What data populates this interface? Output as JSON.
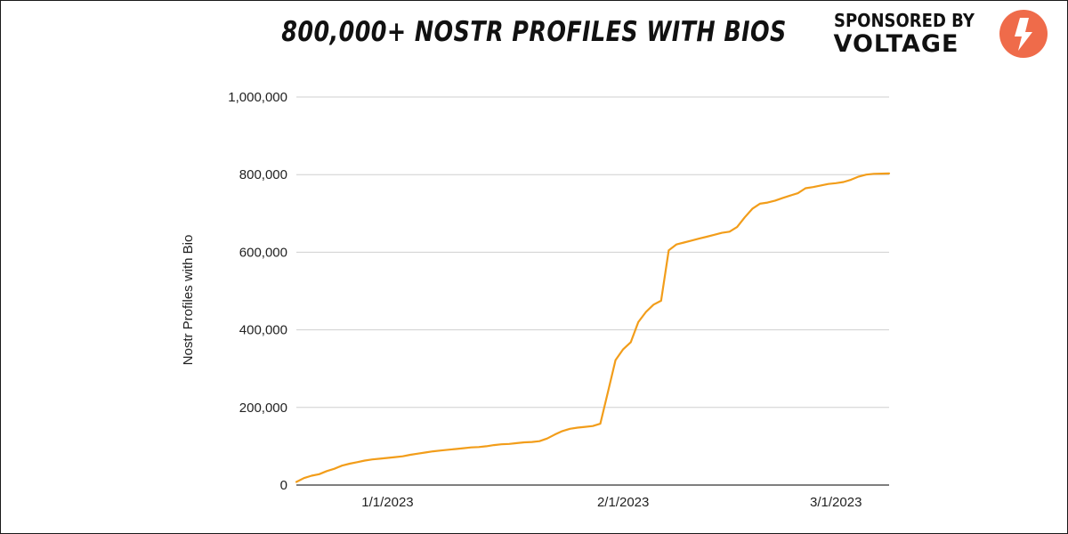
{
  "header": {
    "title": "800,000+ NOSTR PROFILES WITH BIOS",
    "sponsor_line1": "SPONSORED BY",
    "sponsor_line2": "VOLTAGE",
    "sponsor_logo_icon": "lightning-bolt-icon",
    "sponsor_logo_color": "#ef6b4a"
  },
  "chart_data": {
    "type": "line",
    "title": "800,000+ NOSTR PROFILES WITH BIOS",
    "xlabel": "",
    "ylabel": "Nostr Profiles with Bio",
    "ylim": [
      0,
      1000000
    ],
    "yticks": [
      0,
      200000,
      400000,
      600000,
      800000,
      1000000
    ],
    "ytick_labels": [
      "0",
      "200,000",
      "400,000",
      "600,000",
      "800,000",
      "1,000,000"
    ],
    "xticks": [
      "2023-01-01",
      "2023-02-01",
      "2023-03-01"
    ],
    "xtick_labels": [
      "1/1/2023",
      "2/1/2023",
      "3/1/2023"
    ],
    "xlim": [
      "2022-12-20",
      "2023-03-08"
    ],
    "grid": true,
    "line_color": "#f29d1a",
    "series": [
      {
        "x": [
          "2022-12-20",
          "2022-12-21",
          "2022-12-22",
          "2022-12-23",
          "2022-12-24",
          "2022-12-25",
          "2022-12-26",
          "2022-12-27",
          "2022-12-28",
          "2022-12-29",
          "2022-12-30",
          "2022-12-31",
          "2023-01-01",
          "2023-01-02",
          "2023-01-03",
          "2023-01-04",
          "2023-01-05",
          "2023-01-06",
          "2023-01-07",
          "2023-01-08",
          "2023-01-09",
          "2023-01-10",
          "2023-01-11",
          "2023-01-12",
          "2023-01-13",
          "2023-01-14",
          "2023-01-15",
          "2023-01-16",
          "2023-01-17",
          "2023-01-18",
          "2023-01-19",
          "2023-01-20",
          "2023-01-21",
          "2023-01-22",
          "2023-01-23",
          "2023-01-24",
          "2023-01-25",
          "2023-01-26",
          "2023-01-27",
          "2023-01-28",
          "2023-01-29",
          "2023-01-30",
          "2023-01-31",
          "2023-02-01",
          "2023-02-02",
          "2023-02-03",
          "2023-02-04",
          "2023-02-05",
          "2023-02-06",
          "2023-02-07",
          "2023-02-08",
          "2023-02-09",
          "2023-02-10",
          "2023-02-11",
          "2023-02-12",
          "2023-02-13",
          "2023-02-14",
          "2023-02-15",
          "2023-02-16",
          "2023-02-17",
          "2023-02-18",
          "2023-02-19",
          "2023-02-20",
          "2023-02-21",
          "2023-02-22",
          "2023-02-23",
          "2023-02-24",
          "2023-02-25",
          "2023-02-26",
          "2023-02-27",
          "2023-02-28",
          "2023-03-01",
          "2023-03-02",
          "2023-03-03",
          "2023-03-04",
          "2023-03-05",
          "2023-03-06",
          "2023-03-07",
          "2023-03-08"
        ],
        "values": [
          8000,
          18000,
          24000,
          28000,
          36000,
          42000,
          50000,
          55000,
          59000,
          63000,
          66000,
          68000,
          70000,
          72000,
          74000,
          78000,
          81000,
          84000,
          87000,
          89000,
          91000,
          93000,
          95000,
          97000,
          98000,
          100000,
          103000,
          105000,
          106000,
          108000,
          110000,
          111000,
          113000,
          120000,
          130000,
          139000,
          145000,
          148000,
          150000,
          152000,
          158000,
          240000,
          322000,
          350000,
          368000,
          420000,
          446000,
          465000,
          475000,
          605000,
          620000,
          625000,
          630000,
          635000,
          640000,
          645000,
          650000,
          653000,
          665000,
          690000,
          712000,
          725000,
          728000,
          733000,
          740000,
          746000,
          752000,
          765000,
          768000,
          772000,
          776000,
          778000,
          781000,
          787000,
          795000,
          800000,
          802000,
          802500,
          803000
        ]
      }
    ]
  }
}
